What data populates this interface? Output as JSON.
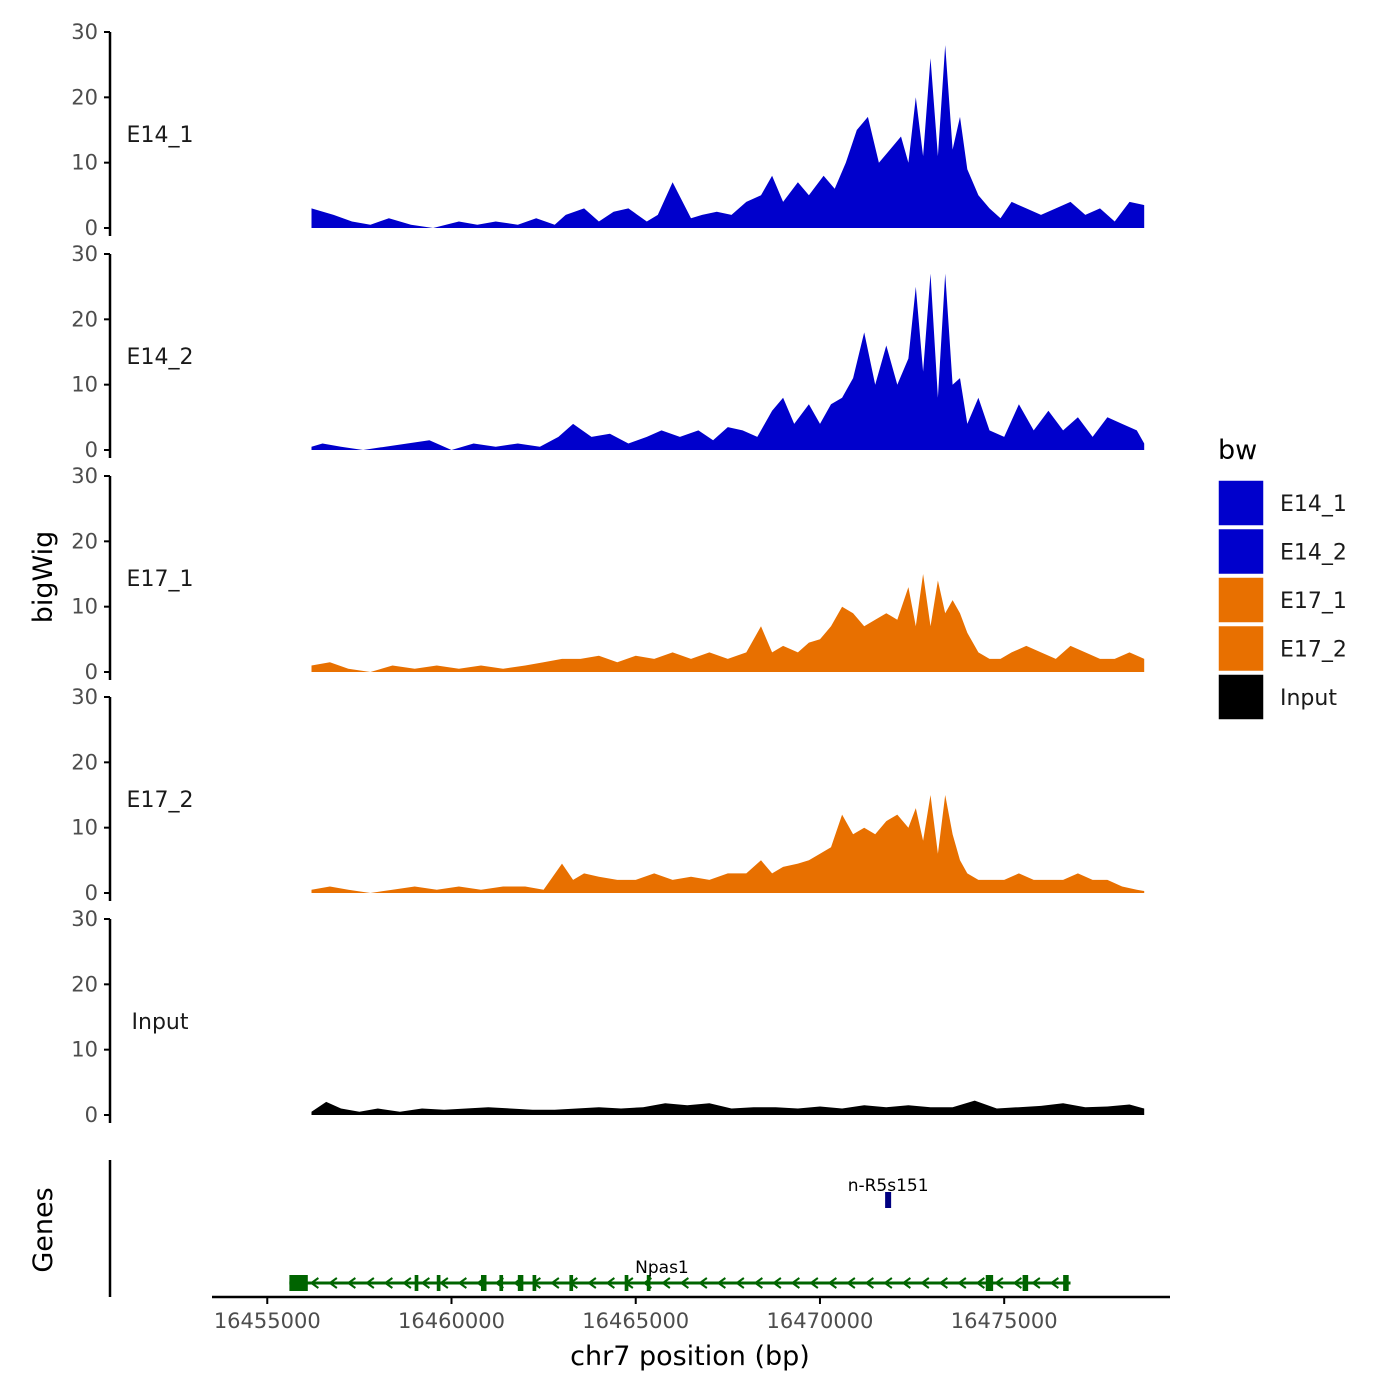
{
  "chart_data": {
    "type": "area",
    "title": "",
    "ylabel": "bigWig",
    "xlabel": "chr7 position (bp)",
    "gene_track_label": "Genes",
    "xlim": [
      16453500,
      16479500
    ],
    "data_range": [
      16456200,
      16478800
    ],
    "ylim": [
      0,
      30
    ],
    "yticks": [
      0,
      10,
      20,
      30
    ],
    "ytick_labels": [
      "0",
      "10",
      "20",
      "30"
    ],
    "xticks": [
      16455000,
      16460000,
      16465000,
      16470000,
      16475000
    ],
    "xtick_labels": [
      "16455000",
      "16460000",
      "16465000",
      "16470000",
      "16475000"
    ],
    "grid": false,
    "legend": {
      "title": "bw",
      "position": "right",
      "entries": [
        {
          "label": "E14_1",
          "color": "#0000CC"
        },
        {
          "label": "E14_2",
          "color": "#0000CC"
        },
        {
          "label": "E17_1",
          "color": "#E87000"
        },
        {
          "label": "E17_2",
          "color": "#E87000"
        },
        {
          "label": "Input",
          "color": "#000000"
        }
      ]
    },
    "series": [
      {
        "name": "E14_1",
        "color": "#0000CC",
        "x": [
          16456200,
          16456800,
          16457300,
          16457800,
          16458300,
          16458900,
          16459500,
          16460200,
          16460700,
          16461200,
          16461800,
          16462300,
          16462800,
          16463100,
          16463600,
          16464000,
          16464400,
          16464800,
          16465300,
          16465600,
          16466000,
          16466500,
          16466800,
          16467200,
          16467600,
          16468000,
          16468400,
          16468700,
          16469000,
          16469400,
          16469700,
          16470100,
          16470400,
          16470700,
          16471000,
          16471300,
          16471600,
          16471900,
          16472200,
          16472400,
          16472600,
          16472800,
          16473000,
          16473200,
          16473400,
          16473600,
          16473800,
          16474000,
          16474300,
          16474600,
          16474900,
          16475200,
          16475600,
          16476000,
          16476400,
          16476800,
          16477200,
          16477600,
          16478000,
          16478400,
          16478800
        ],
        "values": [
          3,
          2,
          1,
          0.5,
          1.5,
          0.5,
          0,
          1,
          0.5,
          1,
          0.5,
          1.5,
          0.5,
          2,
          3,
          1,
          2.5,
          3,
          1,
          2,
          7,
          1.5,
          2,
          2.5,
          2,
          4,
          5,
          8,
          4,
          7,
          5,
          8,
          6,
          10,
          15,
          17,
          10,
          12,
          14,
          10,
          20,
          11,
          26,
          11,
          28,
          12,
          17,
          9,
          5,
          3,
          1.5,
          4,
          3,
          2,
          3,
          4,
          2,
          3,
          1,
          4,
          3.5
        ]
      },
      {
        "name": "E14_2",
        "color": "#0000CC",
        "x": [
          16456200,
          16456500,
          16457000,
          16457600,
          16458200,
          16458800,
          16459400,
          16460000,
          16460600,
          16461200,
          16461800,
          16462400,
          16462900,
          16463300,
          16463800,
          16464300,
          16464800,
          16465300,
          16465700,
          16466200,
          16466700,
          16467100,
          16467500,
          16467900,
          16468300,
          16468700,
          16469000,
          16469300,
          16469700,
          16470000,
          16470300,
          16470600,
          16470900,
          16471200,
          16471500,
          16471800,
          16472100,
          16472400,
          16472600,
          16472800,
          16473000,
          16473200,
          16473400,
          16473600,
          16473800,
          16474000,
          16474300,
          16474600,
          16475000,
          16475400,
          16475800,
          16476200,
          16476600,
          16477000,
          16477400,
          16477800,
          16478200,
          16478600,
          16478800
        ],
        "values": [
          0.5,
          1,
          0.5,
          0,
          0.5,
          1,
          1.5,
          0,
          1,
          0.5,
          1,
          0.5,
          2,
          4,
          2,
          2.5,
          1,
          2,
          3,
          2,
          3,
          1.5,
          3.5,
          3,
          2,
          6,
          8,
          4,
          7,
          4,
          7,
          8,
          11,
          18,
          10,
          16,
          10,
          14,
          25,
          12,
          27,
          8,
          27,
          10,
          11,
          4,
          8,
          3,
          2,
          7,
          3,
          6,
          3,
          5,
          2,
          5,
          4,
          3,
          1
        ]
      },
      {
        "name": "E17_1",
        "color": "#E87000",
        "x": [
          16456200,
          16456700,
          16457200,
          16457800,
          16458400,
          16459000,
          16459600,
          16460200,
          16460800,
          16461400,
          16462000,
          16462500,
          16463000,
          16463500,
          16464000,
          16464500,
          16465000,
          16465500,
          16466000,
          16466500,
          16467000,
          16467500,
          16468000,
          16468400,
          16468700,
          16469000,
          16469400,
          16469700,
          16470000,
          16470300,
          16470600,
          16470900,
          16471200,
          16471500,
          16471800,
          16472100,
          16472400,
          16472600,
          16472800,
          16473000,
          16473200,
          16473400,
          16473600,
          16473800,
          16474000,
          16474300,
          16474600,
          16474900,
          16475200,
          16475600,
          16476000,
          16476400,
          16476800,
          16477200,
          16477600,
          16478000,
          16478400,
          16478800
        ],
        "values": [
          1,
          1.5,
          0.5,
          0,
          1,
          0.5,
          1,
          0.5,
          1,
          0.5,
          1,
          1.5,
          2,
          2,
          2.5,
          1.5,
          2.5,
          2,
          3,
          2,
          3,
          2,
          3,
          7,
          3,
          4,
          3,
          4.5,
          5,
          7,
          10,
          9,
          7,
          8,
          9,
          8,
          13,
          7,
          15,
          7,
          14,
          9,
          11,
          9,
          6,
          3,
          2,
          2,
          3,
          4,
          3,
          2,
          4,
          3,
          2,
          2,
          3,
          2
        ]
      },
      {
        "name": "E17_2",
        "color": "#E87000",
        "x": [
          16456200,
          16456700,
          16457200,
          16457800,
          16458400,
          16459000,
          16459600,
          16460200,
          16460800,
          16461400,
          16462000,
          16462500,
          16463000,
          16463300,
          16463600,
          16464000,
          16464500,
          16465000,
          16465500,
          16466000,
          16466500,
          16467000,
          16467500,
          16468000,
          16468400,
          16468700,
          16469000,
          16469400,
          16469700,
          16470000,
          16470300,
          16470600,
          16470900,
          16471200,
          16471500,
          16471800,
          16472100,
          16472400,
          16472600,
          16472800,
          16473000,
          16473200,
          16473400,
          16473600,
          16473800,
          16474000,
          16474300,
          16474600,
          16475000,
          16475400,
          16475800,
          16476200,
          16476600,
          16477000,
          16477400,
          16477800,
          16478200,
          16478600,
          16478800
        ],
        "values": [
          0.5,
          1,
          0.5,
          0,
          0.5,
          1,
          0.5,
          1,
          0.5,
          1,
          1,
          0.5,
          4.5,
          2,
          3,
          2.5,
          2,
          2,
          3,
          2,
          2.5,
          2,
          3,
          3,
          5,
          3,
          4,
          4.5,
          5,
          6,
          7,
          12,
          9,
          10,
          9,
          11,
          12,
          10,
          13,
          8,
          15,
          6,
          15,
          9,
          5,
          3,
          2,
          2,
          2,
          3,
          2,
          2,
          2,
          3,
          2,
          2,
          1,
          0.5,
          0.3
        ]
      },
      {
        "name": "Input",
        "color": "#000000",
        "x": [
          16456200,
          16456600,
          16457000,
          16457500,
          16458000,
          16458600,
          16459200,
          16459800,
          16460400,
          16461000,
          16461600,
          16462200,
          16462800,
          16463400,
          16464000,
          16464600,
          16465200,
          16465800,
          16466400,
          16467000,
          16467600,
          16468200,
          16468800,
          16469400,
          16470000,
          16470600,
          16471200,
          16471800,
          16472400,
          16473000,
          16473600,
          16474200,
          16474800,
          16475400,
          16476000,
          16476600,
          16477200,
          16477800,
          16478400,
          16478800
        ],
        "values": [
          0.5,
          2,
          1,
          0.5,
          1,
          0.5,
          1,
          0.8,
          1,
          1.2,
          1,
          0.8,
          0.8,
          1,
          1.2,
          1,
          1.2,
          1.8,
          1.5,
          1.8,
          1,
          1.2,
          1.2,
          1,
          1.3,
          1,
          1.5,
          1.2,
          1.5,
          1.2,
          1.2,
          2.2,
          1,
          1.2,
          1.4,
          1.8,
          1.2,
          1.3,
          1.6,
          1
        ]
      }
    ],
    "genes": [
      {
        "name": "n-R5s151",
        "color": "#000080",
        "start": 16471800,
        "end": 16471900,
        "row": "upper",
        "strand": "+"
      },
      {
        "name": "Npas1",
        "color": "#006400",
        "start": 16455600,
        "end": 16476800,
        "row": "lower",
        "strand": "-",
        "exons": [
          [
            16455600,
            16456100
          ],
          [
            16459000,
            16459100
          ],
          [
            16459600,
            16459700
          ],
          [
            16460800,
            16460950
          ],
          [
            16461300,
            16461400
          ],
          [
            16461800,
            16461950
          ],
          [
            16462200,
            16462300
          ],
          [
            16463200,
            16463300
          ],
          [
            16464700,
            16464800
          ],
          [
            16465300,
            16465400
          ],
          [
            16474500,
            16474700
          ],
          [
            16475500,
            16475650
          ],
          [
            16476600,
            16476750
          ]
        ]
      }
    ]
  }
}
